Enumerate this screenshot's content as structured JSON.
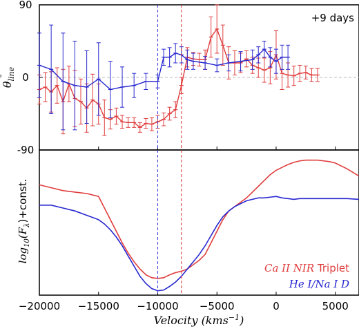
{
  "chart_data": [
    {
      "type": "line",
      "panel": "top",
      "ylabel_main": "θ",
      "ylabel_sup": "°",
      "ylabel_sub": "line",
      "annotation": "+9 days",
      "ylim": [
        -90,
        90
      ],
      "yticks": [
        90,
        0,
        -90
      ],
      "xlim": [
        -20000,
        7000
      ],
      "zero_line": true,
      "vlines": [
        {
          "x": -10000,
          "color": "#3333dd"
        },
        {
          "x": -8000,
          "color": "#dd3333"
        }
      ],
      "colors": {
        "red": "#e03c3c",
        "blue": "#2626d0"
      },
      "series": [
        {
          "key": "red",
          "x": [
            -20000,
            -19500,
            -19000,
            -18500,
            -18000,
            -17500,
            -17000,
            -16500,
            -16000,
            -15500,
            -15000,
            -14500,
            -14000,
            -13500,
            -13000,
            -12500,
            -12000,
            -11500,
            -11000,
            -10500,
            -10000,
            -9500,
            -9000,
            -8500,
            -8000,
            -7500,
            -7000,
            -6500,
            -6000,
            -5500,
            -5000,
            -4500,
            -4000,
            -3500,
            -3000,
            -2500,
            -2000,
            -1500,
            -1000,
            -500,
            0,
            500,
            1000,
            1500,
            2000,
            2500,
            3000,
            3500
          ],
          "y": [
            -15,
            -12,
            -18,
            -10,
            -30,
            -8,
            -26,
            -30,
            -38,
            -28,
            -33,
            -50,
            -52,
            -48,
            -55,
            -56,
            -56,
            -62,
            -57,
            -58,
            -55,
            -52,
            -45,
            -40,
            -10,
            25,
            23,
            22,
            22,
            50,
            60,
            40,
            18,
            18,
            18,
            23,
            15,
            12,
            9,
            12,
            28,
            5,
            3,
            2,
            5,
            6,
            3,
            3
          ],
          "err": [
            18,
            18,
            25,
            22,
            40,
            22,
            35,
            28,
            30,
            32,
            25,
            22,
            12,
            10,
            8,
            6,
            6,
            6,
            6,
            8,
            8,
            8,
            8,
            10,
            10,
            12,
            8,
            8,
            12,
            25,
            30,
            25,
            20,
            15,
            12,
            10,
            10,
            12,
            15,
            20,
            30,
            20,
            15,
            12,
            10,
            8,
            8,
            8
          ]
        },
        {
          "key": "blue",
          "x": [
            -20000,
            -19000,
            -18000,
            -17000,
            -16000,
            -15000,
            -14000,
            -13000,
            -12000,
            -11000,
            -10000,
            -9500,
            -9000,
            -8500,
            -8000,
            -7500,
            -7000,
            -6000,
            -5000,
            -4000,
            -3000,
            -2000,
            -1500,
            -1000,
            -500,
            0,
            500,
            1000
          ],
          "y": [
            15,
            10,
            -5,
            -10,
            -12,
            -2,
            -15,
            -12,
            -10,
            -5,
            -5,
            25,
            25,
            30,
            28,
            22,
            20,
            18,
            15,
            18,
            20,
            22,
            28,
            35,
            25,
            20,
            25,
            25
          ],
          "err": [
            40,
            55,
            60,
            55,
            45,
            45,
            35,
            25,
            15,
            10,
            8,
            10,
            12,
            12,
            10,
            12,
            10,
            8,
            8,
            10,
            12,
            12,
            10,
            10,
            12,
            15,
            15,
            15
          ]
        }
      ]
    },
    {
      "type": "line",
      "panel": "bottom",
      "ylabel": "log10(Fλ)+const.",
      "xlabel": "Velocity (kms⁻¹)",
      "xticks": [
        -20000,
        -15000,
        -10000,
        -5000,
        0,
        5000
      ],
      "xtick_labels": [
        "−20000",
        "−15000",
        "−10000",
        "−5000",
        "0",
        "5000"
      ],
      "xlim": [
        -20000,
        7000
      ],
      "ylim": [
        0,
        1
      ],
      "legend_position": "lower-right",
      "series": [
        {
          "key": "red",
          "name_italic": "Ca II NIR",
          "name_plain": " Triplet",
          "x": [
            -20000,
            -19000,
            -18000,
            -17000,
            -16000,
            -15000,
            -14500,
            -14000,
            -13500,
            -13000,
            -12500,
            -12000,
            -11500,
            -11000,
            -10500,
            -10000,
            -9500,
            -9000,
            -8500,
            -8000,
            -7500,
            -7000,
            -6500,
            -6000,
            -5500,
            -5000,
            -4500,
            -4000,
            -3500,
            -3000,
            -2500,
            -2000,
            -1500,
            -1000,
            -500,
            0,
            500,
            1000,
            1500,
            2000,
            2500,
            3000,
            3500,
            4000,
            4500,
            5000,
            6000,
            7000
          ],
          "y": [
            0.76,
            0.74,
            0.72,
            0.71,
            0.7,
            0.68,
            0.6,
            0.52,
            0.44,
            0.36,
            0.29,
            0.23,
            0.18,
            0.14,
            0.12,
            0.115,
            0.12,
            0.14,
            0.155,
            0.165,
            0.18,
            0.21,
            0.24,
            0.28,
            0.36,
            0.44,
            0.52,
            0.58,
            0.61,
            0.64,
            0.67,
            0.71,
            0.75,
            0.79,
            0.83,
            0.86,
            0.88,
            0.9,
            0.915,
            0.925,
            0.93,
            0.93,
            0.93,
            0.925,
            0.92,
            0.91,
            0.87,
            0.82
          ]
        },
        {
          "key": "blue",
          "name_italic": "He I/Na I D",
          "name_plain": "",
          "x": [
            -20000,
            -19000,
            -18000,
            -17000,
            -16000,
            -15000,
            -14500,
            -14000,
            -13500,
            -13000,
            -12500,
            -12000,
            -11500,
            -11000,
            -10500,
            -10000,
            -9500,
            -9000,
            -8500,
            -8000,
            -7500,
            -7000,
            -6500,
            -6000,
            -5500,
            -5000,
            -4500,
            -4000,
            -3500,
            -3000,
            -2500,
            -2000,
            -1500,
            -1000,
            -500,
            0,
            500,
            1000,
            1500,
            2000,
            3000,
            4000,
            5000,
            6000,
            7000
          ],
          "y": [
            0.62,
            0.62,
            0.6,
            0.58,
            0.55,
            0.52,
            0.49,
            0.45,
            0.4,
            0.34,
            0.27,
            0.2,
            0.13,
            0.08,
            0.045,
            0.03,
            0.035,
            0.06,
            0.09,
            0.13,
            0.18,
            0.23,
            0.28,
            0.34,
            0.41,
            0.48,
            0.54,
            0.58,
            0.61,
            0.63,
            0.65,
            0.66,
            0.67,
            0.67,
            0.675,
            0.68,
            0.67,
            0.665,
            0.66,
            0.665,
            0.665,
            0.665,
            0.665,
            0.665,
            0.66
          ]
        }
      ]
    }
  ]
}
